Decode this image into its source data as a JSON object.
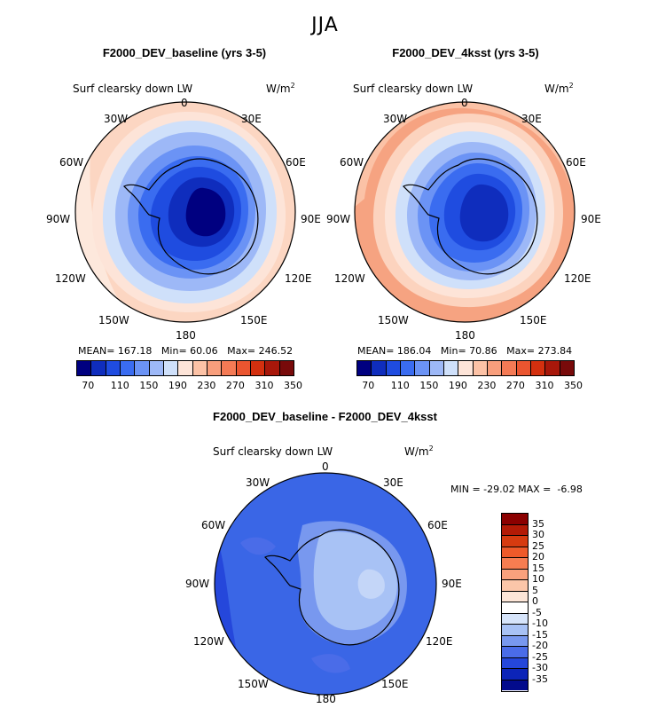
{
  "figure": {
    "season": "JJA"
  },
  "panels": [
    {
      "title": "F2000_DEV_baseline (yrs 3-5)",
      "variable": "Surf clearsky down LW",
      "units_base": "W/m",
      "units_exp": "2",
      "stats": {
        "mean_label": "MEAN=",
        "mean": "167.18",
        "min_label": "Min=",
        "min": "60.06",
        "max_label": "Max=",
        "max": "246.52"
      },
      "colorbar_ticks": [
        "70",
        "110",
        "150",
        "190",
        "230",
        "270",
        "310",
        "350"
      ]
    },
    {
      "title": "F2000_DEV_4ksst (yrs 3-5)",
      "variable": "Surf clearsky down LW",
      "units_base": "W/m",
      "units_exp": "2",
      "stats": {
        "mean_label": "MEAN=",
        "mean": "186.04",
        "min_label": "Min=",
        "min": "70.86",
        "max_label": "Max=",
        "max": "273.84"
      },
      "colorbar_ticks": [
        "70",
        "110",
        "150",
        "190",
        "230",
        "270",
        "310",
        "350"
      ]
    },
    {
      "title": "F2000_DEV_baseline - F2000_DEV_4ksst",
      "variable": "Surf clearsky down LW",
      "units_base": "W/m",
      "units_exp": "2",
      "stats_text": "MIN = -29.02 MAX =  -6.98",
      "colorbar_ticks": [
        "35",
        "30",
        "25",
        "20",
        "15",
        "10",
        "5",
        "0",
        "-5",
        "-10",
        "-15",
        "-20",
        "-25",
        "-30",
        "-35"
      ]
    }
  ],
  "longitude_labels": {
    "lon_0": "0",
    "lon_30E": "30E",
    "lon_60E": "60E",
    "lon_90E": "90E",
    "lon_120E": "120E",
    "lon_150E": "150E",
    "lon_180": "180",
    "lon_150W": "150W",
    "lon_120W": "120W",
    "lon_90W": "90W",
    "lon_60W": "60W",
    "lon_30W": "30W"
  },
  "colors": {
    "abs_scale": [
      "#000080",
      "#0f2dbd",
      "#1f4ce0",
      "#3a6cf0",
      "#6b93f5",
      "#9db8f7",
      "#cfe0fa",
      "#fde4d8",
      "#fcc2a6",
      "#f89e7c",
      "#f47a55",
      "#ea5530",
      "#d4300f",
      "#a8170a",
      "#780a0a"
    ],
    "diff_scale_top_to_bottom": [
      "#8b0000",
      "#b31a06",
      "#d63b10",
      "#ee5a2a",
      "#f77d51",
      "#f9a17d",
      "#fbc6a9",
      "#fde6d8",
      "#ffffff",
      "#d6e4fa",
      "#a8c2f5",
      "#7898ef",
      "#4a6ce8",
      "#2547db",
      "#0c24b8",
      "#020b8c"
    ]
  },
  "chart_data": [
    {
      "type": "heatmap",
      "projection": "south polar stereographic",
      "title": "F2000_DEV_baseline (yrs 3-5)",
      "variable": "Surf clearsky down LW",
      "units": "W/m2",
      "mean": 167.18,
      "min": 60.06,
      "max": 246.52,
      "contour_levels": [
        70,
        110,
        150,
        190,
        230,
        270,
        310,
        350
      ]
    },
    {
      "type": "heatmap",
      "projection": "south polar stereographic",
      "title": "F2000_DEV_4ksst (yrs 3-5)",
      "variable": "Surf clearsky down LW",
      "units": "W/m2",
      "mean": 186.04,
      "min": 70.86,
      "max": 273.84,
      "contour_levels": [
        70,
        110,
        150,
        190,
        230,
        270,
        310,
        350
      ]
    },
    {
      "type": "heatmap",
      "projection": "south polar stereographic",
      "title": "F2000_DEV_baseline - F2000_DEV_4ksst",
      "variable": "Surf clearsky down LW",
      "units": "W/m2",
      "min": -29.02,
      "max": -6.98,
      "contour_levels": [
        -35,
        -30,
        -25,
        -20,
        -15,
        -10,
        -5,
        0,
        5,
        10,
        15,
        20,
        25,
        30,
        35
      ]
    }
  ]
}
